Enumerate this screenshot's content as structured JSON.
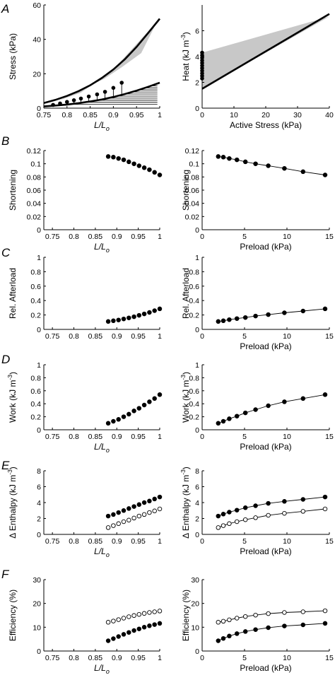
{
  "panel_letters": [
    "A",
    "B",
    "C",
    "D",
    "E",
    "F"
  ],
  "chart_data": [
    {
      "id": "A-left",
      "row": 0,
      "col": 0,
      "type": "line",
      "xlabel": "L/L",
      "xlabel_sub": "o",
      "ylabel": "Stress (kPa)",
      "xlim": [
        0.75,
        1.0
      ],
      "ylim": [
        0,
        60
      ],
      "xticks": [
        0.75,
        0.8,
        0.85,
        0.9,
        0.95,
        1
      ],
      "xtick_labels": [
        "0.75",
        "0.8",
        "0.85",
        "0.9",
        "0.95",
        "1"
      ],
      "yticks": [
        0,
        20,
        40,
        60
      ],
      "ytick_labels": [
        "0",
        "20",
        "40",
        "60"
      ],
      "curves": [
        {
          "x": [
            0.75,
            0.775,
            0.8,
            0.825,
            0.85,
            0.875,
            0.9,
            0.925,
            0.95,
            0.975,
            1.0
          ],
          "y": [
            3.0,
            4.8,
            7.1,
            9.9,
            13.3,
            17.5,
            22.5,
            28.5,
            35.6,
            43.7,
            52.0
          ],
          "width": 2.6
        },
        {
          "x": [
            0.75,
            0.775,
            0.8,
            0.825,
            0.85,
            0.875,
            0.9,
            0.925,
            0.95,
            0.975,
            1.0
          ],
          "y": [
            1.0,
            1.5,
            2.1,
            2.9,
            3.9,
            5.0,
            6.5,
            8.2,
            10.2,
            12.4,
            14.8
          ],
          "width": 2.6
        }
      ],
      "shaded_region": {
        "x": [
          0.78,
          0.88,
          0.918,
          0.96,
          0.99,
          0.998,
          0.9,
          0.83,
          0.78
        ],
        "y": [
          4.2,
          17.0,
          23.8,
          32.0,
          48.0,
          51.5,
          22.5,
          9.0,
          4.2
        ],
        "color": "#c8c8c8"
      },
      "hlines": {
        "y": [
          2.2,
          3.4,
          4.6,
          5.8,
          7.0,
          8.2,
          9.4,
          10.6,
          11.8,
          13.0,
          14.2
        ],
        "x_end": 0.995
      },
      "stems": {
        "x": [
          0.77,
          0.785,
          0.8,
          0.815,
          0.83,
          0.847,
          0.865,
          0.882,
          0.9,
          0.918
        ],
        "y": [
          1.9,
          2.7,
          3.6,
          4.6,
          5.6,
          6.8,
          8.0,
          9.5,
          11.8,
          14.8
        ]
      }
    },
    {
      "id": "A-right",
      "row": 0,
      "col": 1,
      "type": "line",
      "xlabel": "Active Stress (kPa)",
      "ylabel": "Heat (kJ m",
      "ylabel_sup": "-3",
      "ylabel_end": ")",
      "xlim": [
        0,
        40
      ],
      "ylim": [
        0,
        8
      ],
      "xticks": [
        0,
        10,
        20,
        30,
        40
      ],
      "xtick_labels": [
        "0",
        "10",
        "20",
        "30",
        "40"
      ],
      "yticks": [
        0,
        2,
        4,
        6
      ],
      "ytick_labels": [
        "0",
        "2",
        "4",
        "6"
      ],
      "curves": [
        {
          "x": [
            0,
            40
          ],
          "y": [
            1.5,
            7.3
          ],
          "width": 2.6
        }
      ],
      "shaded_region": {
        "x": [
          0,
          0,
          40,
          0
        ],
        "y": [
          1.5,
          4.3,
          7.1,
          1.5
        ],
        "color": "#c8c8c8"
      },
      "points": {
        "x": [
          0,
          0,
          0,
          0,
          0,
          0,
          0,
          0,
          0,
          0,
          0
        ],
        "y": [
          2.3,
          2.5,
          2.7,
          2.9,
          3.1,
          3.3,
          3.5,
          3.7,
          3.9,
          4.1,
          4.3
        ],
        "filled": true
      }
    },
    {
      "id": "B-left",
      "row": 1,
      "col": 0,
      "type": "scatter",
      "xlabel": "L/L",
      "xlabel_sub": "o",
      "ylabel": "Shortening",
      "xlim": [
        0.73,
        1.0
      ],
      "ylim": [
        0,
        0.12
      ],
      "xticks": [
        0.75,
        0.8,
        0.85,
        0.9,
        0.95,
        1
      ],
      "xtick_labels": [
        "0.75",
        "0.8",
        "0.85",
        "0.9",
        "0.95",
        "1"
      ],
      "yticks": [
        0,
        0.02,
        0.04,
        0.06,
        0.08,
        0.1,
        0.12
      ],
      "ytick_labels": [
        "0",
        "0.02",
        "0.04",
        "0.06",
        "0.08",
        "0.1",
        "0.12"
      ],
      "series": [
        {
          "x": [
            0.88,
            0.892,
            0.904,
            0.916,
            0.928,
            0.94,
            0.952,
            0.964,
            0.976,
            0.988,
            1.0
          ],
          "y": [
            0.111,
            0.11,
            0.108,
            0.106,
            0.103,
            0.1,
            0.097,
            0.094,
            0.091,
            0.087,
            0.083
          ],
          "filled": true,
          "line": false
        }
      ]
    },
    {
      "id": "B-right",
      "row": 1,
      "col": 1,
      "type": "line",
      "xlabel": "Preload (kPa)",
      "ylabel": "Shortening",
      "xlim": [
        0,
        15
      ],
      "ylim": [
        0,
        0.12
      ],
      "xticks": [
        0,
        5,
        10,
        15
      ],
      "xtick_labels": [
        "0",
        "5",
        "10",
        "15"
      ],
      "yticks": [
        0,
        0.02,
        0.04,
        0.06,
        0.08,
        0.1,
        0.12
      ],
      "ytick_labels": [
        "0",
        "0.02",
        "0.04",
        "0.06",
        "0.08",
        "0.1",
        "0.12"
      ],
      "series": [
        {
          "x": [
            1.9,
            2.5,
            3.2,
            4.1,
            5.1,
            6.3,
            7.8,
            9.7,
            11.9,
            14.5
          ],
          "y": [
            0.111,
            0.11,
            0.108,
            0.106,
            0.103,
            0.1,
            0.097,
            0.093,
            0.088,
            0.083
          ],
          "filled": true,
          "line": true
        }
      ]
    },
    {
      "id": "C-left",
      "row": 2,
      "col": 0,
      "type": "scatter",
      "xlabel": "",
      "ylabel": "Rel. Afterload",
      "xlim": [
        0.73,
        1.0
      ],
      "ylim": [
        0,
        1
      ],
      "xticks": [
        0.75,
        0.8,
        0.85,
        0.9,
        0.95,
        1
      ],
      "xtick_labels": [
        "0.75",
        "0.8",
        "0.85",
        "0.9",
        "0.95",
        "1"
      ],
      "yticks": [
        0,
        0.2,
        0.4,
        0.6,
        0.8,
        1
      ],
      "ytick_labels": [
        "0",
        "0.2",
        "0.4",
        "0.6",
        "0.8",
        "1"
      ],
      "series": [
        {
          "x": [
            0.88,
            0.892,
            0.904,
            0.916,
            0.928,
            0.94,
            0.952,
            0.964,
            0.976,
            0.988,
            1.0
          ],
          "y": [
            0.11,
            0.12,
            0.13,
            0.145,
            0.16,
            0.175,
            0.195,
            0.215,
            0.235,
            0.26,
            0.285
          ],
          "filled": true,
          "line": false
        }
      ]
    },
    {
      "id": "C-right",
      "row": 2,
      "col": 1,
      "type": "line",
      "xlabel": "Preload (kPa)",
      "ylabel": "Rel. Afterload",
      "xlim": [
        0,
        15
      ],
      "ylim": [
        0,
        1
      ],
      "xticks": [
        0,
        5,
        10,
        15
      ],
      "xtick_labels": [
        "0",
        "5",
        "10",
        "15"
      ],
      "yticks": [
        0,
        0.2,
        0.4,
        0.6,
        0.8,
        1
      ],
      "ytick_labels": [
        "0",
        "0.2",
        "0.4",
        "0.6",
        "0.8",
        "1"
      ],
      "series": [
        {
          "x": [
            1.9,
            2.5,
            3.2,
            4.1,
            5.1,
            6.3,
            7.8,
            9.7,
            11.9,
            14.5
          ],
          "y": [
            0.11,
            0.12,
            0.135,
            0.15,
            0.165,
            0.185,
            0.205,
            0.23,
            0.255,
            0.285
          ],
          "filled": true,
          "line": true
        }
      ]
    },
    {
      "id": "D-left",
      "row": 3,
      "col": 0,
      "type": "scatter",
      "xlabel": "L/L",
      "xlabel_sub": "o",
      "ylabel": "Work (kJ m",
      "ylabel_sup": "-3",
      "ylabel_end": ")",
      "xlim": [
        0.73,
        1.0
      ],
      "ylim": [
        0,
        1
      ],
      "xticks": [
        0.75,
        0.8,
        0.85,
        0.9,
        0.95,
        1
      ],
      "xtick_labels": [
        "0.75",
        "0.8",
        "0.85",
        "0.9",
        "0.95",
        "1"
      ],
      "yticks": [
        0,
        0.2,
        0.4,
        0.6,
        0.8,
        1
      ],
      "ytick_labels": [
        "0",
        "0.2",
        "0.4",
        "0.6",
        "0.8",
        "1"
      ],
      "series": [
        {
          "x": [
            0.88,
            0.892,
            0.904,
            0.916,
            0.928,
            0.94,
            0.952,
            0.964,
            0.976,
            0.988,
            1.0
          ],
          "y": [
            0.1,
            0.13,
            0.16,
            0.2,
            0.24,
            0.29,
            0.33,
            0.38,
            0.43,
            0.48,
            0.54
          ],
          "filled": true,
          "line": false
        }
      ]
    },
    {
      "id": "D-right",
      "row": 3,
      "col": 1,
      "type": "line",
      "xlabel": "Preload (kPa)",
      "ylabel": "Work (kJ m",
      "ylabel_sup": "-3",
      "ylabel_end": ")",
      "xlim": [
        0,
        15
      ],
      "ylim": [
        0,
        1
      ],
      "xticks": [
        0,
        5,
        10,
        15
      ],
      "xtick_labels": [
        "0",
        "5",
        "10",
        "15"
      ],
      "yticks": [
        0,
        0.2,
        0.4,
        0.6,
        0.8,
        1
      ],
      "ytick_labels": [
        "0",
        "0.2",
        "0.4",
        "0.6",
        "0.8",
        "1"
      ],
      "series": [
        {
          "x": [
            1.9,
            2.5,
            3.2,
            4.1,
            5.1,
            6.3,
            7.8,
            9.7,
            11.9,
            14.5
          ],
          "y": [
            0.1,
            0.13,
            0.17,
            0.21,
            0.26,
            0.31,
            0.37,
            0.43,
            0.48,
            0.54
          ],
          "filled": true,
          "line": true
        }
      ]
    },
    {
      "id": "E-left",
      "row": 4,
      "col": 0,
      "type": "scatter",
      "xlabel": "L/L",
      "xlabel_sub": "o",
      "ylabel": "Δ Enthalpy (kJ m",
      "ylabel_sup": "-3",
      "ylabel_end": ")",
      "xlim": [
        0.73,
        1.0
      ],
      "ylim": [
        0,
        8
      ],
      "xticks": [
        0.75,
        0.8,
        0.85,
        0.9,
        0.95,
        1
      ],
      "xtick_labels": [
        "0.75",
        "0.8",
        "0.85",
        "0.9",
        "0.95",
        "1"
      ],
      "yticks": [
        0,
        2,
        4,
        6,
        8
      ],
      "ytick_labels": [
        "0",
        "2",
        "4",
        "6",
        "8"
      ],
      "series": [
        {
          "x": [
            0.88,
            0.892,
            0.904,
            0.916,
            0.928,
            0.94,
            0.952,
            0.964,
            0.976,
            0.988,
            1.0
          ],
          "y": [
            2.3,
            2.5,
            2.75,
            3.0,
            3.25,
            3.5,
            3.75,
            4.0,
            4.2,
            4.45,
            4.7
          ],
          "filled": true,
          "line": false
        },
        {
          "x": [
            0.88,
            0.892,
            0.904,
            0.916,
            0.928,
            0.94,
            0.952,
            0.964,
            0.976,
            0.988,
            1.0
          ],
          "y": [
            0.85,
            1.1,
            1.35,
            1.6,
            1.8,
            2.05,
            2.3,
            2.5,
            2.75,
            2.95,
            3.2
          ],
          "filled": false,
          "line": false
        }
      ]
    },
    {
      "id": "E-right",
      "row": 4,
      "col": 1,
      "type": "line",
      "xlabel": "Preload (kPa)",
      "ylabel": "Δ Enthalpy (kJ m",
      "ylabel_sup": "-3",
      "ylabel_end": ")",
      "xlim": [
        0,
        15
      ],
      "ylim": [
        0,
        8
      ],
      "xticks": [
        0,
        5,
        10,
        15
      ],
      "xtick_labels": [
        "0",
        "5",
        "10",
        "15"
      ],
      "yticks": [
        0,
        2,
        4,
        6,
        8
      ],
      "ytick_labels": [
        "0",
        "2",
        "4",
        "6",
        "8"
      ],
      "series": [
        {
          "x": [
            1.9,
            2.5,
            3.2,
            4.1,
            5.1,
            6.3,
            7.8,
            9.7,
            11.9,
            14.5
          ],
          "y": [
            2.3,
            2.55,
            2.8,
            3.05,
            3.35,
            3.6,
            3.9,
            4.15,
            4.4,
            4.7
          ],
          "filled": true,
          "line": true
        },
        {
          "x": [
            1.9,
            2.5,
            3.2,
            4.1,
            5.1,
            6.3,
            7.8,
            9.7,
            11.9,
            14.5
          ],
          "y": [
            0.85,
            1.1,
            1.35,
            1.6,
            1.85,
            2.1,
            2.4,
            2.65,
            2.9,
            3.2
          ],
          "filled": false,
          "line": true
        }
      ]
    },
    {
      "id": "F-left",
      "row": 5,
      "col": 0,
      "type": "scatter",
      "xlabel": "L/L",
      "xlabel_sub": "o",
      "ylabel": "Efficiency (%)",
      "xlim": [
        0.73,
        1.0
      ],
      "ylim": [
        0,
        30
      ],
      "xticks": [
        0.75,
        0.8,
        0.85,
        0.9,
        0.95,
        1
      ],
      "xtick_labels": [
        "0.75",
        "0.8",
        "0.85",
        "0.9",
        "0.95",
        "1"
      ],
      "yticks": [
        0,
        10,
        20,
        30
      ],
      "ytick_labels": [
        "0",
        "10",
        "20",
        "30"
      ],
      "series": [
        {
          "x": [
            0.88,
            0.892,
            0.904,
            0.916,
            0.928,
            0.94,
            0.952,
            0.964,
            0.976,
            0.988,
            1.0
          ],
          "y": [
            4.3,
            5.2,
            6.1,
            7.0,
            7.8,
            8.6,
            9.3,
            10.0,
            10.6,
            11.1,
            11.6
          ],
          "filled": true,
          "line": false
        },
        {
          "x": [
            0.88,
            0.892,
            0.904,
            0.916,
            0.928,
            0.94,
            0.952,
            0.964,
            0.976,
            0.988,
            1.0
          ],
          "y": [
            12.1,
            12.6,
            13.2,
            13.8,
            14.4,
            14.9,
            15.4,
            15.8,
            16.2,
            16.5,
            16.8
          ],
          "filled": false,
          "line": false
        }
      ]
    },
    {
      "id": "F-right",
      "row": 5,
      "col": 1,
      "type": "line",
      "xlabel": "Preload (kPa)",
      "ylabel": "Efficiency (%)",
      "xlim": [
        0,
        15
      ],
      "ylim": [
        0,
        30
      ],
      "xticks": [
        0,
        5,
        10,
        15
      ],
      "xtick_labels": [
        "0",
        "5",
        "10",
        "15"
      ],
      "yticks": [
        0,
        10,
        20,
        30
      ],
      "ytick_labels": [
        "0",
        "10",
        "20",
        "30"
      ],
      "series": [
        {
          "x": [
            1.9,
            2.5,
            3.2,
            4.1,
            5.1,
            6.3,
            7.8,
            9.7,
            11.9,
            14.5
          ],
          "y": [
            4.3,
            5.3,
            6.3,
            7.3,
            8.2,
            9.0,
            9.8,
            10.5,
            11.0,
            11.6
          ],
          "filled": true,
          "line": true
        },
        {
          "x": [
            1.9,
            2.5,
            3.2,
            4.1,
            5.1,
            6.3,
            7.8,
            9.7,
            11.9,
            14.5
          ],
          "y": [
            12.1,
            12.5,
            13.1,
            13.8,
            14.5,
            15.1,
            15.7,
            16.2,
            16.5,
            16.9
          ],
          "filled": false,
          "line": true
        }
      ]
    }
  ]
}
